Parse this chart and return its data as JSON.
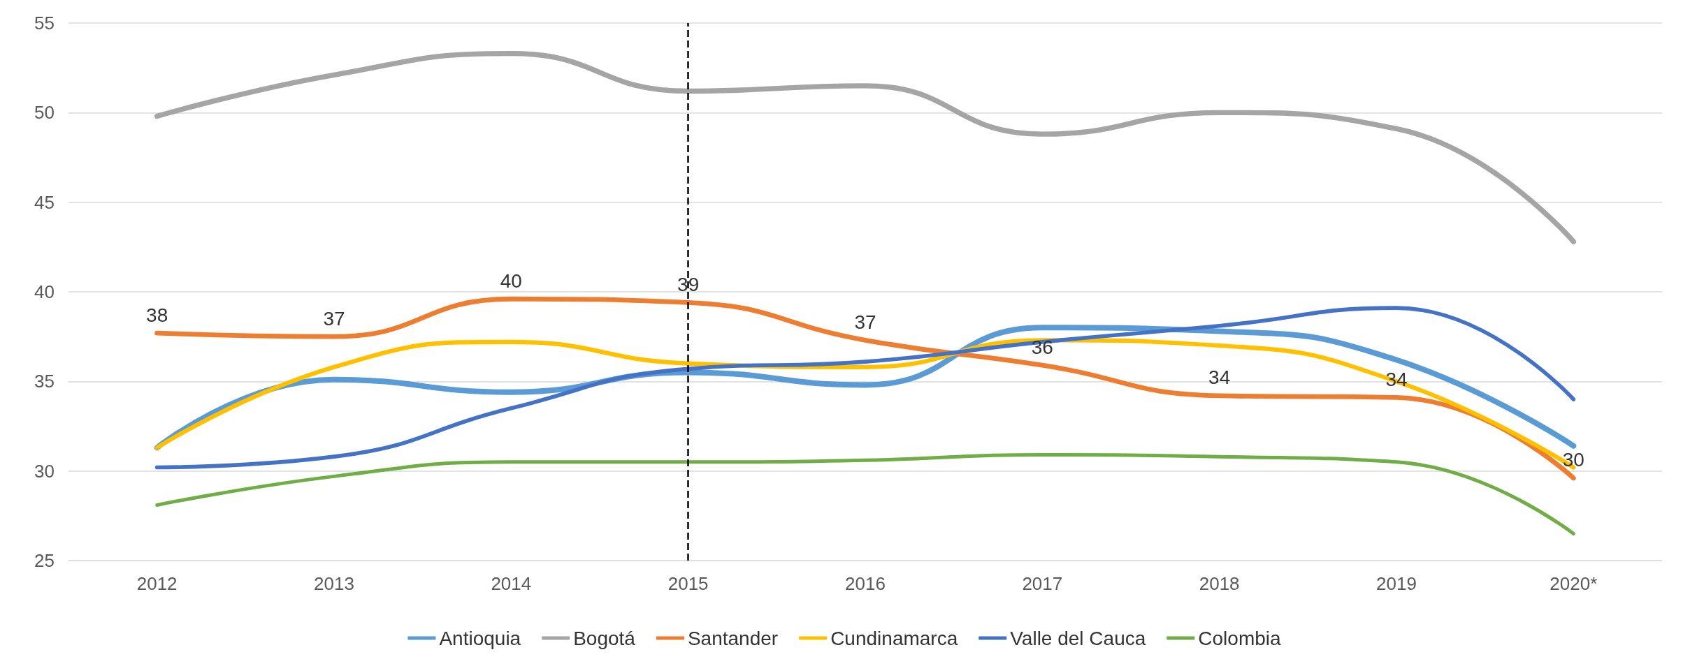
{
  "chart_data": {
    "type": "line",
    "categories": [
      "2012",
      "2013",
      "2014",
      "2015",
      "2016",
      "2017",
      "2018",
      "2019",
      "2020*"
    ],
    "series": [
      {
        "name": "Antioquia",
        "color": "#5b9bd5",
        "values": [
          31.3,
          35.1,
          34.4,
          35.5,
          34.8,
          38.0,
          37.8,
          36.2,
          31.4
        ]
      },
      {
        "name": "Bogotá",
        "color": "#a5a5a5",
        "values": [
          49.8,
          52.1,
          53.3,
          51.2,
          51.5,
          48.8,
          50.0,
          49.1,
          42.8
        ]
      },
      {
        "name": "Santander",
        "color": "#ed7d31",
        "values": [
          37.7,
          37.5,
          39.6,
          39.4,
          37.3,
          35.9,
          34.2,
          34.1,
          29.6
        ],
        "value_labels": [
          "38",
          "37",
          "40",
          "39",
          "37",
          "36",
          "34",
          "34",
          "30"
        ]
      },
      {
        "name": "Cundinamarca",
        "color": "#ffc000",
        "values": [
          31.3,
          35.8,
          37.2,
          36.0,
          35.8,
          37.3,
          37.0,
          35.0,
          30.2
        ]
      },
      {
        "name": "Valle del Cauca",
        "color": "#4472c4",
        "values": [
          30.2,
          30.8,
          33.5,
          35.7,
          36.1,
          37.2,
          38.1,
          39.1,
          34.0
        ]
      },
      {
        "name": "Colombia",
        "color": "#70ad47",
        "values": [
          28.1,
          29.7,
          30.5,
          30.5,
          30.6,
          30.9,
          30.8,
          30.5,
          26.5
        ]
      }
    ],
    "ylim": [
      25,
      55
    ],
    "yticks": [
      25,
      30,
      35,
      40,
      45,
      50,
      55
    ],
    "grid": "y",
    "legend": "bottom",
    "marker": "none",
    "line_style": "solid",
    "ref_lines": [
      {
        "axis": "x",
        "value": "2015",
        "color": "#000000",
        "line_style": "dashed"
      }
    ]
  }
}
